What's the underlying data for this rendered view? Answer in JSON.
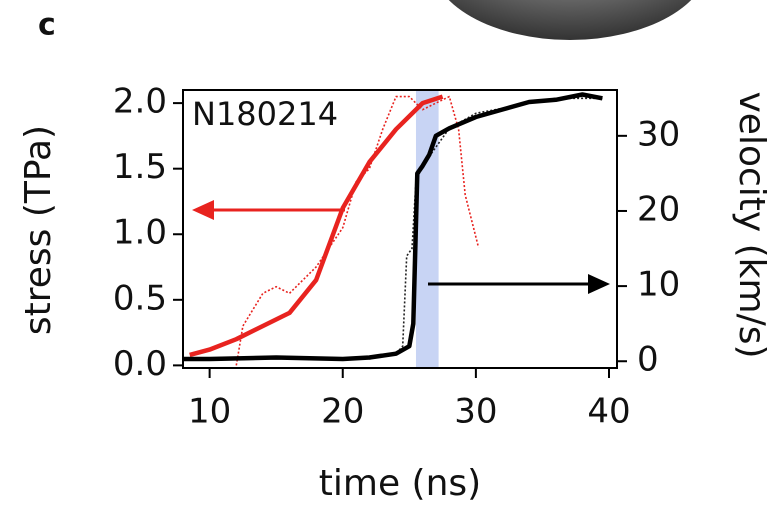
{
  "chart_data": {
    "type": "line",
    "panel_label": "c",
    "annotation": "N180214",
    "xlabel": "time (ns)",
    "ylabel": "stress (TPa)",
    "y2label": "velocity (km/s)",
    "xlim": [
      8,
      40.6
    ],
    "xticks": [
      10,
      20,
      30,
      40
    ],
    "ylim": [
      -0.02,
      2.1
    ],
    "yticks": [
      {
        "value": 0,
        "label": "0.0"
      },
      {
        "value": 0.5,
        "label": "0.5"
      },
      {
        "value": 1,
        "label": "1.0"
      },
      {
        "value": 1.5,
        "label": "1.5"
      },
      {
        "value": 2,
        "label": "2.0"
      }
    ],
    "y2lim": [
      -0.9,
      36.1
    ],
    "y2ticks": [
      0,
      10,
      20,
      30
    ],
    "highlight": {
      "xrange": [
        25.5,
        27.2
      ],
      "color": "#c8d4f4"
    },
    "series": [
      {
        "color": "#e8231f",
        "style": "dotted",
        "axis": "y",
        "x": [
          12,
          12.5,
          14,
          15,
          16,
          18,
          20,
          21,
          22,
          23,
          24,
          25,
          26,
          27,
          28,
          28.7,
          29.2,
          30.2
        ],
        "values": [
          0.0,
          0.3,
          0.55,
          0.6,
          0.55,
          0.75,
          1.05,
          1.4,
          1.5,
          1.8,
          2.05,
          2.05,
          1.95,
          2.0,
          2.05,
          1.8,
          1.3,
          0.9
        ]
      },
      {
        "color": "#e8231f",
        "style": "solid",
        "axis": "y",
        "x": [
          8.5,
          10,
          12,
          14,
          16,
          18,
          20,
          22,
          24,
          26,
          27.5
        ],
        "values": [
          0.08,
          0.12,
          0.2,
          0.3,
          0.4,
          0.65,
          1.2,
          1.55,
          1.8,
          2.0,
          2.05
        ]
      },
      {
        "color": "#222222",
        "style": "dotted",
        "axis": "y2",
        "x": [
          22,
          24,
          24.5,
          24.8,
          25.2,
          25.5,
          26,
          28,
          30,
          33,
          36,
          39.5
        ],
        "values": [
          0.3,
          1,
          2,
          14,
          15,
          24,
          26,
          31,
          33,
          34,
          35,
          35
        ]
      },
      {
        "color": "#000000",
        "style": "solid",
        "axis": "y2",
        "x": [
          8,
          10,
          15,
          20,
          22,
          24,
          25,
          25.3,
          25.6,
          26,
          26.5,
          27,
          28,
          30,
          32,
          34,
          36,
          38,
          39.5
        ],
        "values": [
          0.3,
          0.3,
          0.5,
          0.3,
          0.5,
          1,
          2,
          5,
          25,
          26,
          27.5,
          30,
          31,
          32.5,
          33.5,
          34.5,
          34.8,
          35.5,
          35
        ]
      }
    ]
  }
}
